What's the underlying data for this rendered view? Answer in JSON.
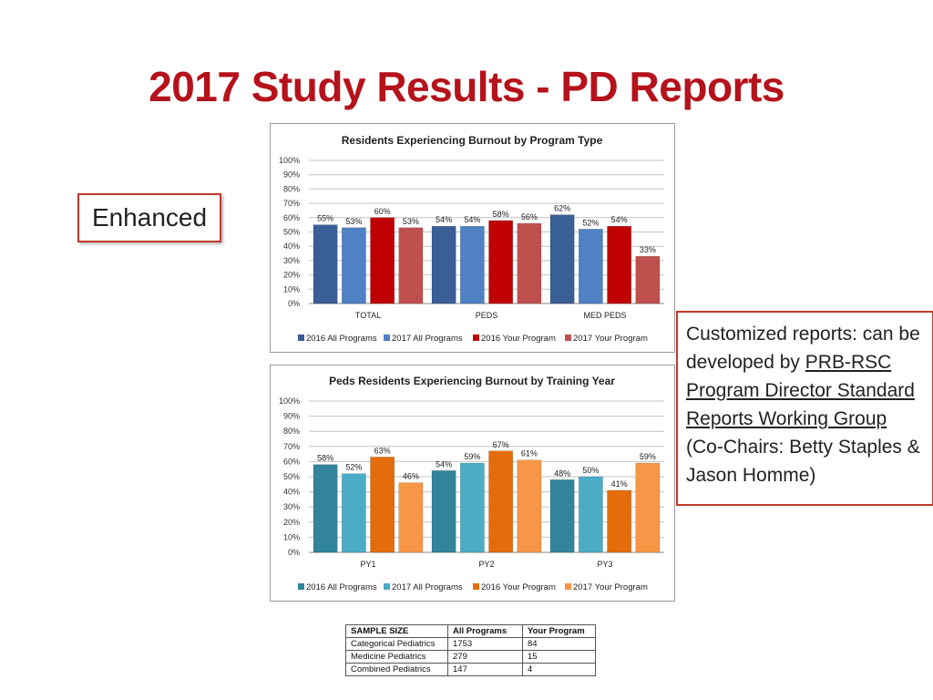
{
  "slide": {
    "title": "2017 Study Results - PD Reports",
    "enhanced_label": "Enhanced"
  },
  "note": {
    "text_before": "Customized reports: can be developed by ",
    "link_text": "PRB-RSC Program Director Standard Reports Working Group",
    "text_after": " (Co-Chairs: Betty Staples & Jason Homme)"
  },
  "sample_table": {
    "headers": [
      "SAMPLE SIZE",
      "All Programs",
      "Your Program"
    ],
    "rows": [
      [
        "Categorical Pediatrics",
        "1753",
        "84"
      ],
      [
        "Medicine Pediatrics",
        "279",
        "15"
      ],
      [
        "Combined Pediatrics",
        "147",
        "4"
      ]
    ]
  },
  "chart_data": [
    {
      "type": "bar",
      "title": "Residents Experiencing Burnout by Program Type",
      "categories": [
        "TOTAL",
        "PEDS",
        "MED PEDS"
      ],
      "ylim": [
        0,
        100
      ],
      "yticks": [
        "0%",
        "10%",
        "20%",
        "30%",
        "40%",
        "50%",
        "60%",
        "70%",
        "80%",
        "90%",
        "100%"
      ],
      "grid": true,
      "legend_position": "bottom",
      "series": [
        {
          "name": "2016 All Programs",
          "color": "#3a5e96",
          "values": [
            55,
            54,
            62
          ]
        },
        {
          "name": "2017 All Programs",
          "color": "#4f81c4",
          "values": [
            53,
            54,
            52
          ]
        },
        {
          "name": "2016 Your Program",
          "color": "#c00000",
          "values": [
            60,
            58,
            54
          ]
        },
        {
          "name": "2017 Your Program",
          "color": "#c0504d",
          "values": [
            53,
            56,
            33
          ]
        }
      ]
    },
    {
      "type": "bar",
      "title": "Peds Residents Experiencing Burnout by Training Year",
      "categories": [
        "PY1",
        "PY2",
        "PY3"
      ],
      "ylim": [
        0,
        100
      ],
      "yticks": [
        "0%",
        "10%",
        "20%",
        "30%",
        "40%",
        "50%",
        "60%",
        "70%",
        "80%",
        "90%",
        "100%"
      ],
      "grid": true,
      "legend_position": "bottom",
      "series": [
        {
          "name": "2016 All Programs",
          "color": "#31849b",
          "values": [
            58,
            54,
            48
          ]
        },
        {
          "name": "2017 All Programs",
          "color": "#4bacc6",
          "values": [
            52,
            59,
            50
          ]
        },
        {
          "name": "2016 Your Program",
          "color": "#e46c0a",
          "values": [
            63,
            67,
            41
          ]
        },
        {
          "name": "2017 Your Program",
          "color": "#f79646",
          "values": [
            46,
            61,
            59
          ]
        }
      ]
    }
  ]
}
